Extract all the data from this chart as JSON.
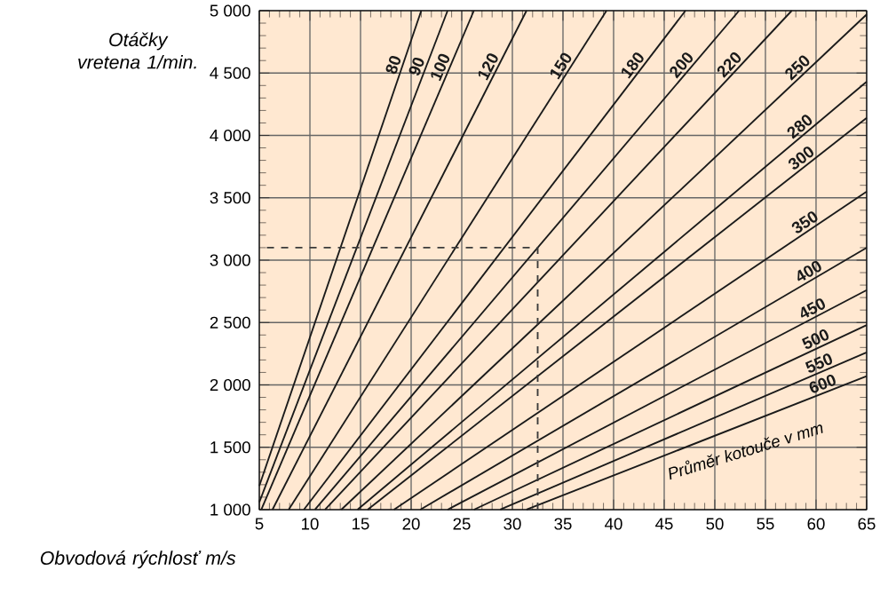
{
  "chart_data": {
    "type": "line",
    "xlabel": "Obvodová rýchlosť m/s",
    "ylabel": "Otáčky vretena 1/min.",
    "xlim": [
      5,
      65
    ],
    "ylim": [
      1000,
      5000
    ],
    "xticks": [
      5,
      10,
      15,
      20,
      25,
      30,
      35,
      40,
      45,
      50,
      55,
      60,
      65
    ],
    "yticks": [
      {
        "value": 1000,
        "label": "1 000"
      },
      {
        "value": 1500,
        "label": "1 500"
      },
      {
        "value": 2000,
        "label": "2 000"
      },
      {
        "value": 2500,
        "label": "2 500"
      },
      {
        "value": 3000,
        "label": "3 000"
      },
      {
        "value": 3500,
        "label": "3 500"
      },
      {
        "value": 4000,
        "label": "4 000"
      },
      {
        "value": 4500,
        "label": "4 500"
      },
      {
        "value": 5000,
        "label": "5 000"
      }
    ],
    "grid": true,
    "line_style": "solid",
    "series": [
      {
        "name": "80",
        "color": "#1a1a1a",
        "x": [
          5,
          21
        ],
        "values": [
          1190,
          5000
        ]
      },
      {
        "name": "90",
        "color": "#1a1a1a",
        "x": [
          5,
          23.6
        ],
        "values": [
          1060,
          5000
        ]
      },
      {
        "name": "100",
        "color": "#1a1a1a",
        "x": [
          5.2,
          26.2
        ],
        "values": [
          1000,
          5000
        ]
      },
      {
        "name": "120",
        "color": "#1a1a1a",
        "x": [
          6.3,
          31.4
        ],
        "values": [
          1000,
          5000
        ]
      },
      {
        "name": "150",
        "color": "#1a1a1a",
        "x": [
          7.9,
          39.3
        ],
        "values": [
          1000,
          5000
        ]
      },
      {
        "name": "180",
        "color": "#1a1a1a",
        "x": [
          9.4,
          47.1
        ],
        "values": [
          1000,
          5000
        ]
      },
      {
        "name": "200",
        "color": "#1a1a1a",
        "x": [
          10.5,
          52.4
        ],
        "values": [
          1000,
          5000
        ]
      },
      {
        "name": "220",
        "color": "#1a1a1a",
        "x": [
          11.5,
          57.6
        ],
        "values": [
          1000,
          5000
        ]
      },
      {
        "name": "250",
        "color": "#1a1a1a",
        "x": [
          13.1,
          65
        ],
        "values": [
          1000,
          4970
        ]
      },
      {
        "name": "280",
        "color": "#1a1a1a",
        "x": [
          14.7,
          65
        ],
        "values": [
          1000,
          4430
        ]
      },
      {
        "name": "300",
        "color": "#1a1a1a",
        "x": [
          15.7,
          65
        ],
        "values": [
          1000,
          4140
        ]
      },
      {
        "name": "350",
        "color": "#1a1a1a",
        "x": [
          18.3,
          65
        ],
        "values": [
          1000,
          3550
        ]
      },
      {
        "name": "400",
        "color": "#1a1a1a",
        "x": [
          20.9,
          65
        ],
        "values": [
          1000,
          3100
        ]
      },
      {
        "name": "450",
        "color": "#1a1a1a",
        "x": [
          23.6,
          65
        ],
        "values": [
          1000,
          2760
        ]
      },
      {
        "name": "500",
        "color": "#1a1a1a",
        "x": [
          26.2,
          65
        ],
        "values": [
          1000,
          2480
        ]
      },
      {
        "name": "550",
        "color": "#1a1a1a",
        "x": [
          28.8,
          65
        ],
        "values": [
          1000,
          2260
        ]
      },
      {
        "name": "600",
        "color": "#1a1a1a",
        "x": [
          31.4,
          65
        ],
        "values": [
          1000,
          2070
        ]
      },
      {
        "color": "#3a3a3a",
        "line_style": "dashed",
        "x": [
          32.5,
          32.5,
          5
        ],
        "values": [
          1000,
          3100,
          3100
        ]
      }
    ],
    "annotations": [
      "Průměr kotouče v mm"
    ]
  }
}
